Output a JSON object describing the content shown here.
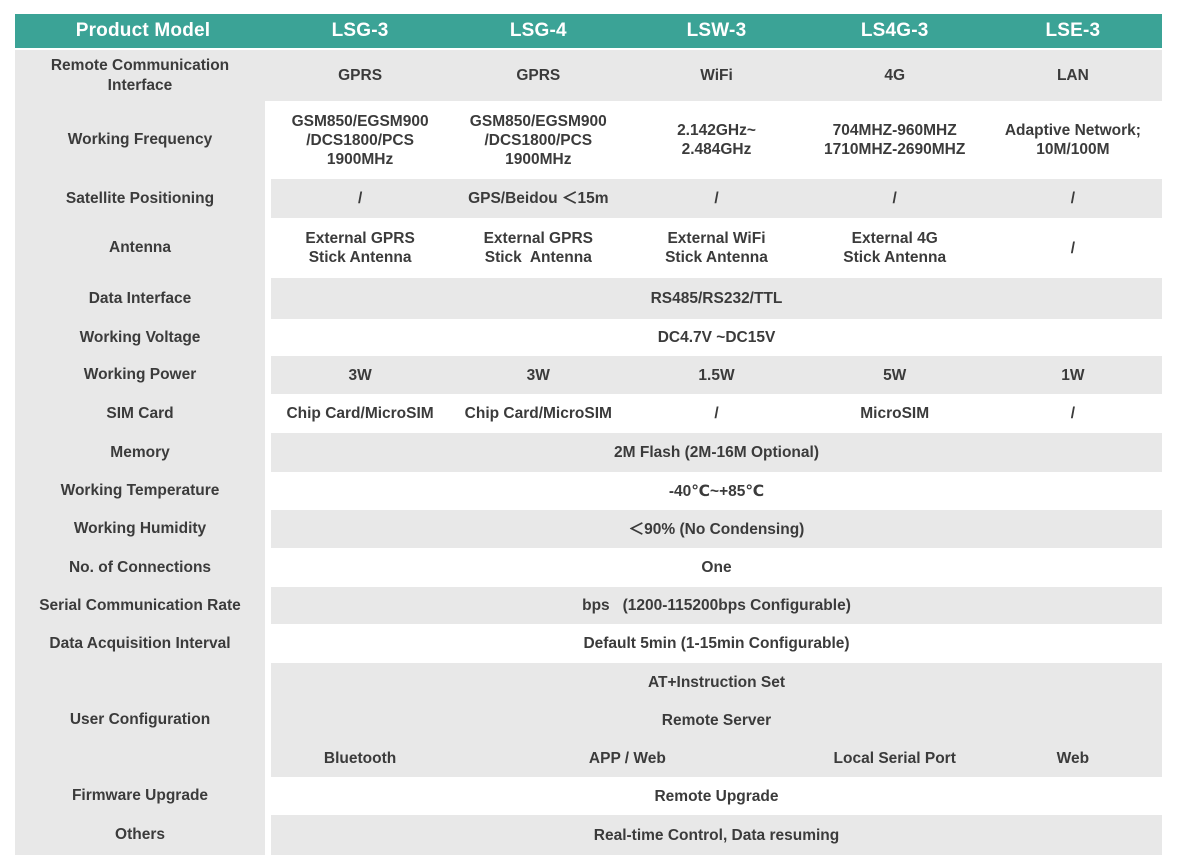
{
  "colors": {
    "header_bg": "#3ba396",
    "row_gray": "#e8e8e8",
    "row_white": "#ffffff",
    "text": "#3b3b3b",
    "header_text": "#ffffff"
  },
  "table": {
    "header": {
      "columns": [
        {
          "label": "Product Model"
        },
        {
          "label": "LSG-3"
        },
        {
          "label": "LSG-4"
        },
        {
          "label": "LSW-3"
        },
        {
          "label": "LS4G-3"
        },
        {
          "label": "LSE-3"
        }
      ]
    },
    "rows": [
      {
        "label": "Remote Communication\nInterface",
        "cells": [
          {
            "text": "GPRS"
          },
          {
            "text": "GPRS"
          },
          {
            "text": "WiFi"
          },
          {
            "text": "4G"
          },
          {
            "text": "LAN"
          }
        ]
      },
      {
        "label": "Working Frequency",
        "cells": [
          {
            "text": "GSM850/EGSM900\n/DCS1800/PCS\n1900MHz"
          },
          {
            "text": "GSM850/EGSM900\n/DCS1800/PCS\n1900MHz"
          },
          {
            "text": "2.142GHz~\n2.484GHz"
          },
          {
            "text": "704MHZ-960MHZ\n1710MHZ-2690MHZ"
          },
          {
            "text": "Adaptive Network;\n10M/100M"
          }
        ]
      },
      {
        "label": "Satellite Positioning",
        "cells": [
          {
            "text": "/"
          },
          {
            "text": "GPS/Beidou ＜15m"
          },
          {
            "text": "/"
          },
          {
            "text": "/"
          },
          {
            "text": "/"
          }
        ]
      },
      {
        "label": "Antenna",
        "cells": [
          {
            "text": "External GPRS\nStick Antenna"
          },
          {
            "text": "External GPRS\nStick  Antenna"
          },
          {
            "text": "External WiFi\nStick Antenna"
          },
          {
            "text": "External 4G\nStick Antenna"
          },
          {
            "text": "/"
          }
        ]
      },
      {
        "label": "Data Interface",
        "span": "RS485/RS232/TTL"
      },
      {
        "label": "Working Voltage",
        "span": "DC4.7V ~DC15V"
      },
      {
        "label": "Working Power",
        "cells": [
          {
            "text": "3W"
          },
          {
            "text": "3W"
          },
          {
            "text": "1.5W"
          },
          {
            "text": "5W"
          },
          {
            "text": "1W"
          }
        ]
      },
      {
        "label": "SIM Card",
        "cells": [
          {
            "text": "Chip Card/MicroSIM"
          },
          {
            "text": "Chip Card/MicroSIM"
          },
          {
            "text": "/"
          },
          {
            "text": "MicroSIM"
          },
          {
            "text": "/"
          }
        ]
      },
      {
        "label": "Memory",
        "span": "2M Flash (2M-16M Optional)"
      },
      {
        "label": "Working Temperature",
        "span": "-40℃~+85℃"
      },
      {
        "label": "Working Humidity",
        "span": "＜90% (No Condensing)"
      },
      {
        "label": "No. of Connections",
        "span": "One"
      },
      {
        "label": "Serial Communication Rate",
        "span": "bps   (1200-115200bps Configurable)"
      },
      {
        "label": "Data Acquisition Interval",
        "span": "Default 5min (1-15min Configurable)"
      },
      {
        "label": "User Configuration",
        "subrows": [
          {
            "span": "AT+Instruction Set"
          },
          {
            "span": "Remote Server"
          },
          {
            "cells": [
              {
                "text": "Bluetooth",
                "colspan": 1
              },
              {
                "text": "APP / Web",
                "colspan": 2
              },
              {
                "text": "Local Serial Port",
                "colspan": 1
              },
              {
                "text": "Web",
                "colspan": 1
              }
            ]
          }
        ]
      },
      {
        "label": "Firmware Upgrade",
        "span": "Remote Upgrade"
      },
      {
        "label": "Others",
        "span": "Real-time Control, Data resuming"
      }
    ]
  }
}
